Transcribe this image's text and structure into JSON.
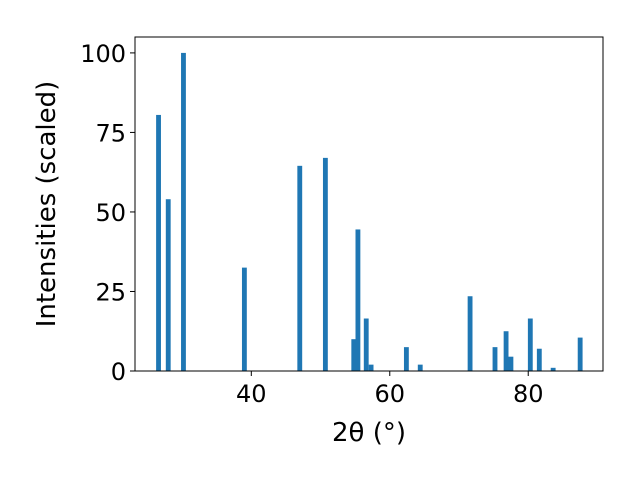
{
  "chart_data": {
    "type": "bar",
    "xlabel": "2θ (°)",
    "ylabel": "Intensities (scaled)",
    "xlim": [
      23.2,
      90.8
    ],
    "ylim": [
      0,
      105
    ],
    "grid": false,
    "color": "#1f77b4",
    "bar_width": 0.7,
    "x_ticks": [
      40,
      60,
      80
    ],
    "y_ticks": [
      0,
      25,
      50,
      75,
      100
    ],
    "x_tick_labels": [
      "40",
      "60",
      "80"
    ],
    "y_tick_labels": [
      "0",
      "25",
      "50",
      "75",
      "100"
    ],
    "x": [
      26.6,
      28.0,
      30.2,
      39.0,
      47.0,
      50.7,
      54.8,
      55.4,
      56.6,
      57.3,
      62.4,
      64.4,
      71.6,
      75.2,
      76.8,
      77.5,
      80.3,
      81.6,
      83.6,
      87.5
    ],
    "y": [
      80.5,
      54,
      100,
      32.5,
      64.5,
      67,
      10,
      44.5,
      16.5,
      2,
      7.5,
      2,
      23.5,
      7.5,
      12.5,
      4.5,
      16.5,
      7,
      1,
      10.5
    ]
  }
}
